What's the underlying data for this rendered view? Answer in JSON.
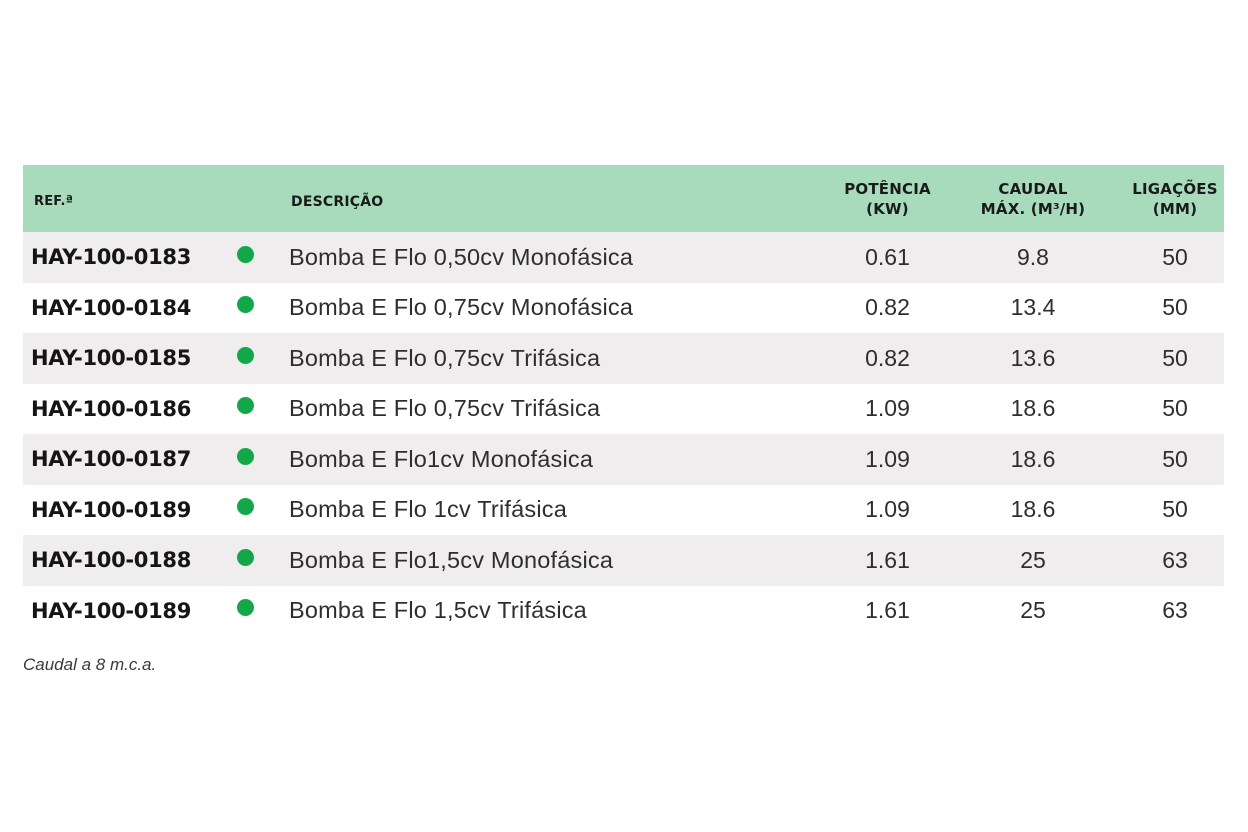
{
  "header": {
    "ref": "REF.ª",
    "descricao": "DESCRIÇÃO",
    "potencia": [
      "POTÊNCIA",
      "(KW)"
    ],
    "caudal": [
      "CAUDAL",
      "MÁX. (M³/H)"
    ],
    "ligacoes": [
      "LIGAÇÕES",
      "(MM)"
    ]
  },
  "colors": {
    "header_bg": "#a8dbbc",
    "row_alt_bg": "#efeded",
    "status_dot": "#12a84a"
  },
  "rows": [
    {
      "ref": "HAY-100-0183",
      "desc": "Bomba E Flo 0,50cv Monofásica",
      "potencia": "0.61",
      "caudal": "9.8",
      "ligacoes": "50"
    },
    {
      "ref": "HAY-100-0184",
      "desc": "Bomba E Flo 0,75cv Monofásica",
      "potencia": "0.82",
      "caudal": "13.4",
      "ligacoes": "50"
    },
    {
      "ref": "HAY-100-0185",
      "desc": "Bomba E Flo 0,75cv Trifásica",
      "potencia": "0.82",
      "caudal": "13.6",
      "ligacoes": "50"
    },
    {
      "ref": "HAY-100-0186",
      "desc": "Bomba E Flo 0,75cv Trifásica",
      "potencia": "1.09",
      "caudal": "18.6",
      "ligacoes": "50"
    },
    {
      "ref": "HAY-100-0187",
      "desc": "Bomba E Flo1cv Monofásica",
      "potencia": "1.09",
      "caudal": "18.6",
      "ligacoes": "50"
    },
    {
      "ref": "HAY-100-0189",
      "desc": "Bomba E Flo 1cv Trifásica",
      "potencia": "1.09",
      "caudal": "18.6",
      "ligacoes": "50"
    },
    {
      "ref": "HAY-100-0188",
      "desc": "Bomba E Flo1,5cv Monofásica",
      "potencia": "1.61",
      "caudal": "25",
      "ligacoes": "63"
    },
    {
      "ref": "HAY-100-0189",
      "desc": "Bomba E Flo 1,5cv Trifásica",
      "potencia": "1.61",
      "caudal": "25",
      "ligacoes": "63"
    }
  ],
  "footnote": "Caudal a 8 m.c.a."
}
